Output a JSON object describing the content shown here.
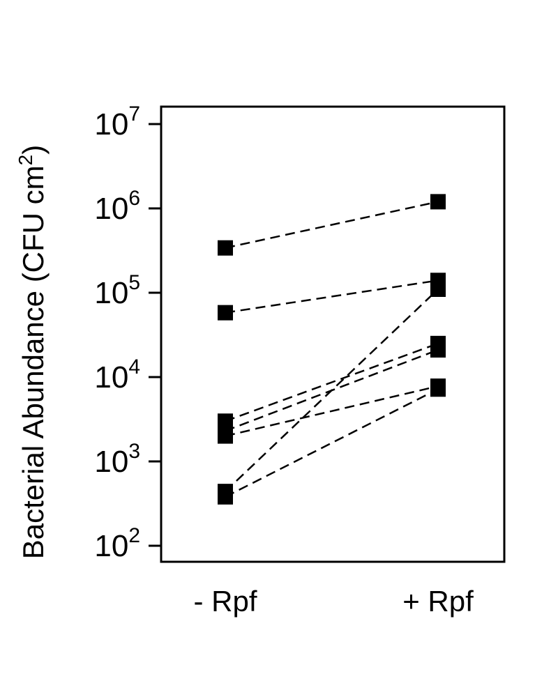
{
  "chart_data": {
    "type": "line",
    "title": "",
    "ylabel": {
      "main": "Bacterial Abundance (CFU cm",
      "sup": "2",
      "close": ")"
    },
    "xlabel": "",
    "categories": [
      "- Rpf",
      "+ Rpf"
    ],
    "y_scale": "log10",
    "ylim": [
      100,
      10000000
    ],
    "y_ticks": [
      {
        "base": "10",
        "exp": "2",
        "value": 100
      },
      {
        "base": "10",
        "exp": "3",
        "value": 1000
      },
      {
        "base": "10",
        "exp": "4",
        "value": 10000
      },
      {
        "base": "10",
        "exp": "5",
        "value": 100000
      },
      {
        "base": "10",
        "exp": "6",
        "value": 1000000
      },
      {
        "base": "10",
        "exp": "7",
        "value": 10000000
      }
    ],
    "line_style": "dashed",
    "marker": "square",
    "grid": false,
    "series": [
      {
        "values": [
          340000,
          1200000
        ]
      },
      {
        "values": [
          58000,
          140000
        ]
      },
      {
        "values": [
          3000,
          25000
        ]
      },
      {
        "values": [
          2300,
          21000
        ]
      },
      {
        "values": [
          2000,
          7800
        ]
      },
      {
        "values": [
          440,
          110000
        ]
      },
      {
        "values": [
          380,
          7200
        ]
      }
    ]
  }
}
